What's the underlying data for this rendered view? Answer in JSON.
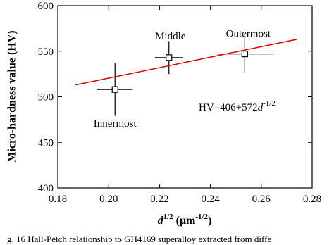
{
  "chart_data": {
    "type": "scatter",
    "y_label": "Micro-hardness value (HV)",
    "x_label": {
      "var": "d",
      "sup": "1/2",
      "unit": " (μm",
      "unit_sup": "-1/2",
      "close": ")"
    },
    "xlim": [
      0.18,
      0.28
    ],
    "xticks": [
      0.18,
      {
        "value": 0.2,
        "label": "0.20"
      },
      0.22,
      0.24,
      0.26,
      0.28
    ],
    "ylim": [
      400,
      600
    ],
    "yticks": [
      400,
      450,
      500,
      550,
      600
    ],
    "series": [
      {
        "color": "#000000",
        "marker": "square",
        "x": [
          0.2025,
          0.2237,
          0.2535
        ],
        "values": [
          508,
          543,
          547
        ],
        "xerr": [
          0.007,
          0.0055,
          0.011
        ],
        "yerr": [
          29,
          18,
          21
        ],
        "point_labels": [
          "Innermost",
          "Middle",
          "Outermost"
        ]
      },
      {
        "color": "#d40000",
        "line": true,
        "x": [
          0.187,
          0.274
        ],
        "values": [
          513,
          563
        ]
      }
    ],
    "annotation": {
      "text": "HV=406+572",
      "var": "d",
      "sup": "-1/2"
    },
    "caption": "g. 16  Hall-Petch relationship to GH4169 superalloy extracted from diffe"
  }
}
